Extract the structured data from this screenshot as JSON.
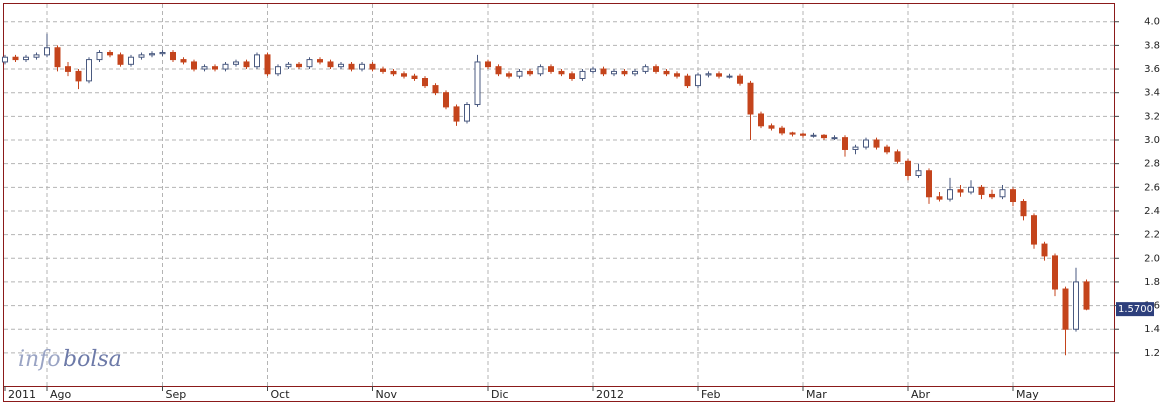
{
  "chart_data": {
    "type": "candlestick",
    "categories": [
      "2011",
      null,
      null,
      null,
      "Ago",
      null,
      null,
      null,
      null,
      null,
      null,
      null,
      null,
      null,
      null,
      "Sep",
      null,
      null,
      null,
      null,
      null,
      null,
      null,
      null,
      null,
      "Oct",
      null,
      null,
      null,
      null,
      null,
      null,
      null,
      null,
      null,
      "Nov",
      null,
      null,
      null,
      null,
      null,
      null,
      null,
      null,
      null,
      null,
      "Dic",
      null,
      null,
      null,
      null,
      null,
      null,
      null,
      null,
      null,
      "2012",
      null,
      null,
      null,
      null,
      null,
      null,
      null,
      null,
      null,
      "Feb",
      null,
      null,
      null,
      null,
      null,
      null,
      null,
      null,
      null,
      "Mar",
      null,
      null,
      null,
      null,
      null,
      null,
      null,
      null,
      null,
      "Abr",
      null,
      null,
      null,
      null,
      null,
      null,
      null,
      null,
      null,
      "May",
      null,
      null,
      null,
      null,
      null,
      null,
      null
    ],
    "open": [
      3.66,
      3.7,
      3.68,
      3.7,
      3.72,
      3.78,
      3.62,
      3.58,
      3.5,
      3.68,
      3.74,
      3.72,
      3.64,
      3.7,
      3.72,
      3.73,
      3.74,
      3.68,
      3.66,
      3.6,
      3.62,
      3.6,
      3.64,
      3.66,
      3.62,
      3.72,
      3.56,
      3.62,
      3.64,
      3.62,
      3.68,
      3.66,
      3.62,
      3.64,
      3.6,
      3.64,
      3.6,
      3.58,
      3.56,
      3.54,
      3.52,
      3.46,
      3.4,
      3.28,
      3.16,
      3.3,
      3.66,
      3.62,
      3.56,
      3.54,
      3.58,
      3.56,
      3.62,
      3.58,
      3.56,
      3.52,
      3.58,
      3.6,
      3.56,
      3.58,
      3.56,
      3.58,
      3.62,
      3.58,
      3.56,
      3.54,
      3.46,
      3.55,
      3.56,
      3.54,
      3.54,
      3.48,
      3.22,
      3.12,
      3.1,
      3.06,
      3.05,
      3.04,
      3.04,
      3.02,
      3.02,
      2.92,
      2.94,
      3.0,
      2.94,
      2.9,
      2.82,
      2.7,
      2.74,
      2.52,
      2.5,
      2.58,
      2.56,
      2.6,
      2.54,
      2.52,
      2.58,
      2.48,
      2.36,
      2.12,
      2.02,
      1.74,
      1.4,
      1.8
    ],
    "high": [
      3.72,
      3.72,
      3.72,
      3.74,
      3.9,
      3.8,
      3.66,
      3.6,
      3.7,
      3.76,
      3.76,
      3.74,
      3.72,
      3.74,
      3.75,
      3.76,
      3.76,
      3.7,
      3.68,
      3.64,
      3.64,
      3.66,
      3.68,
      3.68,
      3.74,
      3.74,
      3.64,
      3.66,
      3.66,
      3.7,
      3.7,
      3.68,
      3.66,
      3.66,
      3.66,
      3.66,
      3.62,
      3.6,
      3.58,
      3.56,
      3.54,
      3.48,
      3.42,
      3.3,
      3.32,
      3.72,
      3.68,
      3.64,
      3.58,
      3.6,
      3.6,
      3.64,
      3.64,
      3.6,
      3.58,
      3.6,
      3.62,
      3.62,
      3.6,
      3.6,
      3.6,
      3.64,
      3.64,
      3.6,
      3.58,
      3.56,
      3.57,
      3.58,
      3.58,
      3.56,
      3.56,
      3.5,
      3.24,
      3.14,
      3.12,
      3.07,
      3.06,
      3.06,
      3.05,
      3.04,
      3.04,
      2.96,
      3.02,
      3.02,
      2.96,
      2.92,
      2.84,
      2.8,
      2.76,
      2.56,
      2.68,
      2.62,
      2.66,
      2.62,
      2.58,
      2.62,
      2.6,
      2.5,
      2.38,
      2.14,
      2.04,
      1.76,
      1.92,
      1.82
    ],
    "low": [
      3.64,
      3.66,
      3.66,
      3.68,
      3.7,
      3.58,
      3.54,
      3.43,
      3.48,
      3.66,
      3.7,
      3.62,
      3.62,
      3.68,
      3.7,
      3.71,
      3.66,
      3.64,
      3.58,
      3.58,
      3.58,
      3.58,
      3.62,
      3.6,
      3.6,
      3.54,
      3.54,
      3.6,
      3.6,
      3.6,
      3.64,
      3.6,
      3.6,
      3.58,
      3.58,
      3.58,
      3.56,
      3.54,
      3.52,
      3.5,
      3.44,
      3.38,
      3.26,
      3.12,
      3.14,
      3.28,
      3.6,
      3.54,
      3.52,
      3.52,
      3.54,
      3.54,
      3.56,
      3.54,
      3.5,
      3.5,
      3.56,
      3.54,
      3.54,
      3.54,
      3.54,
      3.56,
      3.56,
      3.54,
      3.52,
      3.44,
      3.44,
      3.53,
      3.52,
      3.52,
      3.46,
      3.0,
      3.1,
      3.08,
      3.04,
      3.03,
      3.02,
      3.02,
      3.0,
      3.0,
      2.86,
      2.88,
      2.92,
      2.92,
      2.88,
      2.8,
      2.66,
      2.68,
      2.46,
      2.48,
      2.48,
      2.52,
      2.54,
      2.5,
      2.5,
      2.5,
      2.44,
      2.32,
      2.08,
      1.98,
      1.68,
      1.18,
      1.38,
      1.56
    ],
    "close": [
      3.7,
      3.68,
      3.7,
      3.72,
      3.78,
      3.62,
      3.58,
      3.5,
      3.68,
      3.74,
      3.72,
      3.64,
      3.7,
      3.72,
      3.73,
      3.74,
      3.68,
      3.66,
      3.6,
      3.62,
      3.6,
      3.64,
      3.66,
      3.62,
      3.72,
      3.56,
      3.62,
      3.64,
      3.62,
      3.68,
      3.66,
      3.62,
      3.64,
      3.6,
      3.64,
      3.6,
      3.58,
      3.56,
      3.54,
      3.52,
      3.46,
      3.4,
      3.28,
      3.16,
      3.3,
      3.66,
      3.62,
      3.56,
      3.54,
      3.58,
      3.56,
      3.62,
      3.58,
      3.56,
      3.52,
      3.58,
      3.6,
      3.56,
      3.58,
      3.56,
      3.58,
      3.62,
      3.58,
      3.56,
      3.54,
      3.46,
      3.55,
      3.56,
      3.54,
      3.54,
      3.48,
      3.22,
      3.12,
      3.1,
      3.06,
      3.05,
      3.04,
      3.04,
      3.02,
      3.02,
      2.92,
      2.94,
      3.0,
      2.94,
      2.9,
      2.82,
      2.7,
      2.74,
      2.52,
      2.5,
      2.58,
      2.56,
      2.6,
      2.54,
      2.52,
      2.58,
      2.48,
      2.36,
      2.12,
      2.02,
      1.74,
      1.4,
      1.8,
      1.57
    ],
    "up_color": "#4a5a80",
    "down_color": "#c4441c",
    "ylim": [
      0.92,
      4.15
    ],
    "yticks": [
      1.2,
      1.4,
      1.6,
      1.8,
      {
        "value": 2,
        "label": "2.0"
      },
      2.2,
      2.4,
      2.6,
      2.8,
      {
        "value": 3,
        "label": "3.0"
      },
      3.2,
      3.4,
      3.6,
      3.8,
      {
        "value": 4,
        "label": "4.0"
      }
    ],
    "grid": true,
    "last_price": {
      "value": 1.57,
      "label": "1.5700"
    },
    "watermark": [
      "info",
      "bolsa"
    ]
  }
}
